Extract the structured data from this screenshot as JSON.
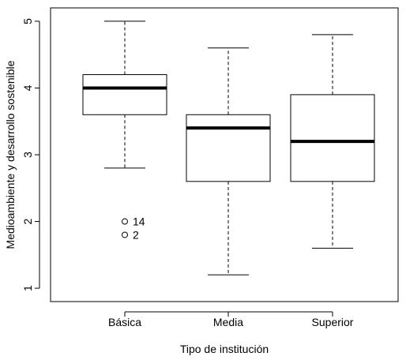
{
  "chart_data": {
    "type": "boxplot",
    "xlabel": "Tipo de institución",
    "ylabel": "Medioambiente y desarrollo sostenible",
    "ylim": [
      0.8,
      5.2
    ],
    "yticks": [
      1,
      2,
      3,
      4,
      5
    ],
    "categories": [
      "Básica",
      "Media",
      "Superior"
    ],
    "boxes": [
      {
        "category": "Básica",
        "whisker_low": 2.8,
        "q1": 3.6,
        "median": 4.0,
        "q3": 4.2,
        "whisker_high": 5.0,
        "outliers": [
          {
            "value": 2.0,
            "label": "14"
          },
          {
            "value": 1.8,
            "label": "2"
          }
        ]
      },
      {
        "category": "Media",
        "whisker_low": 1.2,
        "q1": 2.6,
        "median": 3.4,
        "q3": 3.6,
        "whisker_high": 4.6,
        "outliers": []
      },
      {
        "category": "Superior",
        "whisker_low": 1.6,
        "q1": 2.6,
        "median": 3.2,
        "q3": 3.9,
        "whisker_high": 4.8,
        "outliers": []
      }
    ],
    "grid": false,
    "legend": "none"
  }
}
